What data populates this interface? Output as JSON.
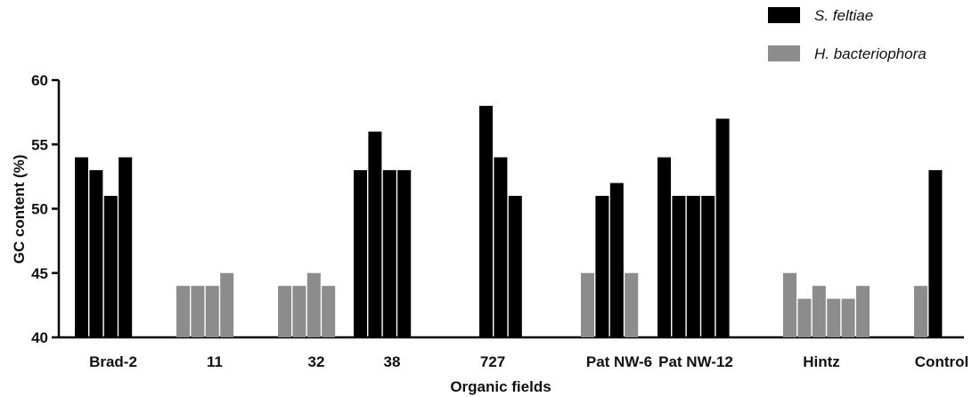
{
  "chart_data": {
    "type": "bar",
    "title": "",
    "xlabel": "Organic fields",
    "ylabel": "GC content (%)",
    "ylim": [
      40,
      60
    ],
    "yticks": [
      40,
      45,
      50,
      55,
      60
    ],
    "grid": false,
    "legend_position": "top-right",
    "colors": {
      "S. feltiae": "#000000",
      "H. bacteriophora": "#8c8c8c"
    },
    "series": [
      {
        "name": "S. feltiae"
      },
      {
        "name": "H. bacteriophora"
      }
    ],
    "groups": [
      {
        "label": "Brad-2",
        "bars": [
          {
            "series": "S. feltiae",
            "value": 54
          },
          {
            "series": "S. feltiae",
            "value": 53
          },
          {
            "series": "S. feltiae",
            "value": 51
          },
          {
            "series": "S. feltiae",
            "value": 54
          }
        ]
      },
      {
        "label": "11",
        "bars": [
          {
            "series": "H. bacteriophora",
            "value": 44
          },
          {
            "series": "H. bacteriophora",
            "value": 44
          },
          {
            "series": "H. bacteriophora",
            "value": 44
          },
          {
            "series": "H. bacteriophora",
            "value": 45
          }
        ]
      },
      {
        "label": "32",
        "bars": [
          {
            "series": "H. bacteriophora",
            "value": 44
          },
          {
            "series": "H. bacteriophora",
            "value": 44
          },
          {
            "series": "H. bacteriophora",
            "value": 45
          },
          {
            "series": "H. bacteriophora",
            "value": 44
          }
        ]
      },
      {
        "label": "38",
        "bars": [
          {
            "series": "S. feltiae",
            "value": 53
          },
          {
            "series": "S. feltiae",
            "value": 56
          },
          {
            "series": "S. feltiae",
            "value": 53
          },
          {
            "series": "S. feltiae",
            "value": 53
          }
        ]
      },
      {
        "label": "727",
        "bars": [
          {
            "series": "S. feltiae",
            "value": 58
          },
          {
            "series": "S. feltiae",
            "value": 54
          },
          {
            "series": "S. feltiae",
            "value": 51
          }
        ]
      },
      {
        "label": "Pat NW-6",
        "bars": [
          {
            "series": "H. bacteriophora",
            "value": 45
          },
          {
            "series": "S. feltiae",
            "value": 51
          },
          {
            "series": "S. feltiae",
            "value": 52
          },
          {
            "series": "H. bacteriophora",
            "value": 45
          }
        ]
      },
      {
        "label": "Pat NW-12",
        "bars": [
          {
            "series": "S. feltiae",
            "value": 54
          },
          {
            "series": "S. feltiae",
            "value": 51
          },
          {
            "series": "S. feltiae",
            "value": 51
          },
          {
            "series": "S. feltiae",
            "value": 51
          },
          {
            "series": "S. feltiae",
            "value": 57
          }
        ]
      },
      {
        "label": "Hintz",
        "bars": [
          {
            "series": "H. bacteriophora",
            "value": 45
          },
          {
            "series": "H. bacteriophora",
            "value": 43
          },
          {
            "series": "H. bacteriophora",
            "value": 44
          },
          {
            "series": "H. bacteriophora",
            "value": 43
          },
          {
            "series": "H. bacteriophora",
            "value": 43
          },
          {
            "series": "H. bacteriophora",
            "value": 44
          }
        ]
      },
      {
        "label": "Control",
        "bars": [
          {
            "series": "H. bacteriophora",
            "value": 44
          },
          {
            "series": "S. feltiae",
            "value": 53
          }
        ]
      }
    ]
  }
}
